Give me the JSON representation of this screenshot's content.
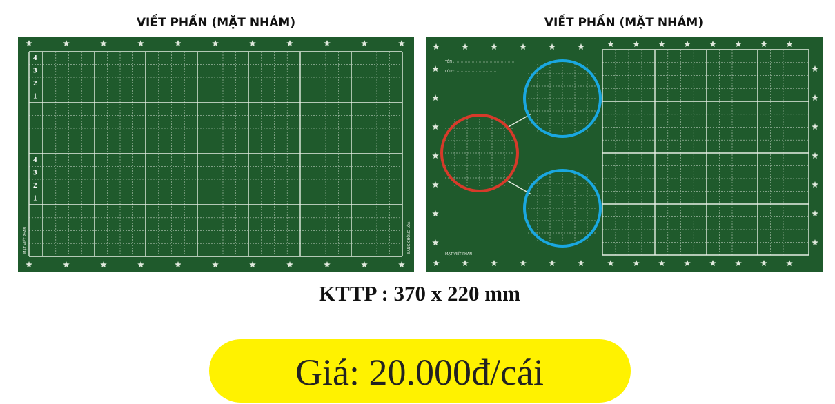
{
  "boards": [
    {
      "title": "VIẾT PHẤN  (MẶT NHÁM)",
      "row_numbers": [
        "4",
        "3",
        "2",
        "1"
      ],
      "side_labels": [
        "MẶT VIẾT PHẤN",
        "BẢNG CHỐNG LÓA"
      ]
    },
    {
      "title": "VIẾT PHẤN  (MẶT NHÁM)",
      "fields": [
        "TÊN :",
        "LỚP :"
      ],
      "side_labels": [
        "MẶT VIẾT PHẤN"
      ]
    }
  ],
  "size": "KTTP : 370 x 220 mm",
  "price": "Giá: 20.000đ/cái"
}
